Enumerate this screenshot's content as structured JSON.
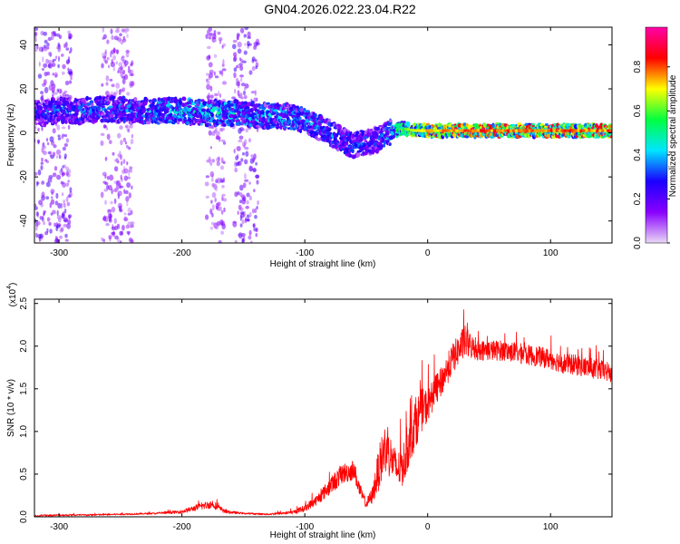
{
  "title": "GN04.2026.022.23.04.R22",
  "chart_data": [
    {
      "type": "heatmap",
      "id": "spectrogram",
      "xlabel": "Height of straight line (km)",
      "ylabel": "Frequency (Hz)",
      "xlim": [
        -320,
        150
      ],
      "ylim": [
        -50,
        48
      ],
      "xticks": [
        -300,
        -200,
        -100,
        0,
        100
      ],
      "xtick_labels": [
        "-300",
        "-200",
        "-100",
        "0",
        "100"
      ],
      "yticks": [
        -40,
        -20,
        0,
        20,
        40
      ],
      "ytick_labels": [
        "-40",
        "-20",
        "0",
        "20",
        "40"
      ],
      "colorbar": {
        "label": "Normalized spectral amplitude",
        "range": [
          0,
          0.98
        ],
        "ticks": [
          0.0,
          0.2,
          0.4,
          0.6,
          0.8
        ],
        "tick_labels": [
          "0.0",
          "0.2",
          "0.4",
          "0.6",
          "0.8"
        ],
        "colormap": [
          "#e9d9f6",
          "#8a00ff",
          "#1a00ff",
          "#00e6ff",
          "#00ff40",
          "#ffff00",
          "#ff0000",
          "#ff00aa"
        ]
      },
      "ridge": {
        "x": [
          -315,
          -300,
          -280,
          -260,
          -240,
          -220,
          -200,
          -180,
          -160,
          -140,
          -120,
          -100,
          -90,
          -80,
          -70,
          -60,
          -50,
          -40,
          -30,
          -20,
          -10,
          0,
          20,
          50,
          80,
          110,
          150
        ],
        "freq": [
          9,
          10,
          10,
          11,
          10,
          10,
          10,
          9,
          9,
          8,
          8,
          6,
          3,
          0,
          -3,
          -6,
          -4,
          -3,
          0,
          2,
          1,
          1,
          1,
          1,
          1,
          1,
          1
        ],
        "amplitude": [
          0.28,
          0.3,
          0.3,
          0.32,
          0.32,
          0.35,
          0.38,
          0.4,
          0.38,
          0.35,
          0.35,
          0.35,
          0.32,
          0.32,
          0.3,
          0.3,
          0.28,
          0.3,
          0.35,
          0.5,
          0.6,
          0.65,
          0.7,
          0.72,
          0.72,
          0.72,
          0.72
        ]
      },
      "noise_bands": [
        {
          "x_range": [
            -320,
            -290
          ],
          "level": 0.2
        },
        {
          "x_range": [
            -265,
            -240
          ],
          "level": 0.15
        },
        {
          "x_range": [
            -180,
            -165
          ],
          "level": 0.15
        },
        {
          "x_range": [
            -158,
            -138
          ],
          "level": 0.2
        }
      ]
    },
    {
      "type": "line",
      "id": "snr",
      "xlabel": "Height of straight line (km)",
      "ylabel": "SNR (10 * v/v)",
      "y_multiplier": "(x10",
      "y_multiplier_exp": "4",
      "xlim": [
        -320,
        150
      ],
      "ylim": [
        0,
        2.55
      ],
      "xticks": [
        -300,
        -200,
        -100,
        0,
        100
      ],
      "xtick_labels": [
        "-300",
        "-200",
        "-100",
        "0",
        "100"
      ],
      "yticks": [
        0.0,
        0.5,
        1.0,
        1.5,
        2.0,
        2.5
      ],
      "ytick_labels": [
        "0.0",
        "0.5",
        "1.0",
        "1.5",
        "2.0",
        "2.5"
      ],
      "color": "#ff0000",
      "series": [
        {
          "x": [
            -320,
            -300,
            -280,
            -250,
            -220,
            -200,
            -185,
            -175,
            -165,
            -150,
            -130,
            -110,
            -100,
            -90,
            -80,
            -70,
            -60,
            -55,
            -50,
            -45,
            -40,
            -35,
            -30,
            -25,
            -20,
            -15,
            -10,
            -5,
            0,
            5,
            10,
            15,
            20,
            25,
            30,
            35,
            40,
            50,
            60,
            70,
            80,
            90,
            100,
            110,
            120,
            130,
            140,
            150
          ],
          "values": [
            0.01,
            0.02,
            0.02,
            0.03,
            0.04,
            0.06,
            0.12,
            0.15,
            0.06,
            0.04,
            0.03,
            0.05,
            0.1,
            0.2,
            0.35,
            0.5,
            0.55,
            0.3,
            0.15,
            0.25,
            0.55,
            0.8,
            0.7,
            0.55,
            0.6,
            0.9,
            1.1,
            1.25,
            1.3,
            1.45,
            1.55,
            1.7,
            1.85,
            1.95,
            2.05,
            2.0,
            1.95,
            1.95,
            1.95,
            1.93,
            1.9,
            1.88,
            1.85,
            1.8,
            1.78,
            1.75,
            1.72,
            1.68
          ],
          "noise": [
            0.01,
            0.01,
            0.01,
            0.01,
            0.01,
            0.02,
            0.04,
            0.05,
            0.02,
            0.01,
            0.01,
            0.02,
            0.04,
            0.06,
            0.1,
            0.12,
            0.12,
            0.08,
            0.05,
            0.1,
            0.25,
            0.3,
            0.25,
            0.2,
            0.25,
            0.3,
            0.3,
            0.25,
            0.2,
            0.18,
            0.18,
            0.18,
            0.18,
            0.18,
            0.2,
            0.15,
            0.12,
            0.12,
            0.12,
            0.12,
            0.12,
            0.12,
            0.12,
            0.12,
            0.12,
            0.12,
            0.12,
            0.12
          ]
        }
      ]
    }
  ]
}
